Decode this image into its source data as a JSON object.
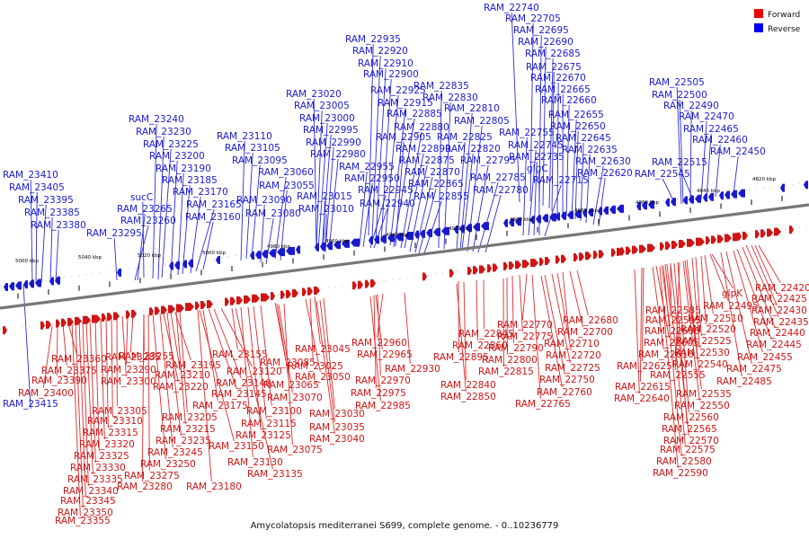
{
  "caption": "Amycolatopsis mediterranei S699, complete genome. - 0..10236779",
  "legend": [
    {
      "label": "Forward",
      "color": "#ee0000"
    },
    {
      "label": "Reverse",
      "color": "#0000ee"
    }
  ],
  "ticks": [
    "5000 kbp",
    "5040 kbp",
    "5020 kbp",
    "5000 kbp",
    "4980 kbp",
    "4960 kbp",
    "4940 kbp",
    "4920 kbp",
    "4900 kbp",
    "4880 kbp",
    "4860 kbp",
    "4840 kbp",
    "4820 kbp"
  ],
  "reverse_labels": [
    "RAM_22740",
    "RAM_22705",
    "RAM_22695",
    "RAM_22690",
    "RAM_22685",
    "RAM_22675",
    "RAM_22670",
    "RAM_22665",
    "RAM_22660",
    "RAM_22655",
    "RAM_22650",
    "RAM_22645",
    "RAM_22635",
    "RAM_22630",
    "RAM_22620",
    "RAM_22935",
    "RAM_22920",
    "RAM_22910",
    "RAM_22900",
    "RAM_22925",
    "RAM_22915",
    "RAM_22885",
    "RAM_22880",
    "RAM_22905",
    "RAM_22890",
    "RAM_22875",
    "RAM_22870",
    "RAM_22865",
    "RAM_22855",
    "RAM_22835",
    "RAM_22830",
    "RAM_22810",
    "RAM_22805",
    "RAM_22825",
    "RAM_22820",
    "RAM_22795",
    "RAM_22785",
    "RAM_22780",
    "RAM_22755",
    "RAM_22745",
    "RAM_22735",
    "glgC",
    "RAM_22715",
    "RAM_23020",
    "RAM_23005",
    "RAM_23000",
    "RAM_22995",
    "RAM_22990",
    "RAM_22980",
    "RAM_22955",
    "RAM_22950",
    "RAM_22945",
    "RAM_22940",
    "RAM_23110",
    "RAM_23105",
    "RAM_23095",
    "RAM_23060",
    "RAM_23055",
    "RAM_23090",
    "RAM_23080",
    "RAM_23015",
    "RAM_23010",
    "RAM_23240",
    "RAM_23230",
    "RAM_23225",
    "RAM_23200",
    "RAM_23190",
    "RAM_23185",
    "RAM_23170",
    "RAM_23165",
    "RAM_23160",
    "sucC",
    "RAM_23265",
    "RAM_23260",
    "RAM_23295",
    "RAM_23410",
    "RAM_23405",
    "RAM_23395",
    "RAM_23385",
    "RAM_23380",
    "RAM_22505",
    "RAM_22500",
    "RAM_22490",
    "RAM_22470",
    "RAM_22465",
    "RAM_22460",
    "RAM_22450",
    "RAM_22515",
    "RAM_22545",
    "RAM_23415"
  ],
  "forward_labels": [
    "RAM_22420",
    "RAM_22425",
    "RAM_22430",
    "RAM_22435",
    "RAM_22440",
    "RAM_22445",
    "RAM_22455",
    "RAM_22475",
    "RAM_22485",
    "glpK",
    "RAM_22495",
    "RAM_22510",
    "RAM_22520",
    "RAM_22525",
    "RAM_22530",
    "RAM_22540",
    "RAM_22535",
    "RAM_22550",
    "RAM_22560",
    "RAM_22565",
    "RAM_22570",
    "RAM_22575",
    "RAM_22580",
    "RAM_22590",
    "RAM_22555",
    "RAM_22585",
    "RAM_22595",
    "RAM_22600",
    "RAM_22605",
    "RAM_22610",
    "RAM_22625",
    "RAM_22615",
    "RAM_22640",
    "RAM_22680",
    "RAM_22700",
    "RAM_22710",
    "RAM_22720",
    "RAM_22725",
    "RAM_22750",
    "RAM_22760",
    "RAM_22765",
    "RAM_22770",
    "RAM_22775",
    "RAM_22790",
    "RAM_22800",
    "RAM_22815",
    "RAM_22845",
    "RAM_22860",
    "RAM_22895",
    "RAM_22840",
    "RAM_22850",
    "RAM_22960",
    "RAM_22965",
    "RAM_22930",
    "RAM_22970",
    "RAM_22975",
    "RAM_22985",
    "RAM_23045",
    "RAM_23025",
    "RAM_23050",
    "RAM_23030",
    "RAM_23035",
    "RAM_23040",
    "RAM_23085",
    "RAM_23065",
    "RAM_23070",
    "RAM_23075",
    "RAM_23100",
    "RAM_23115",
    "RAM_23125",
    "RAM_23130",
    "RAM_23135",
    "RAM_23155",
    "RAM_23120",
    "RAM_23140",
    "RAM_23145",
    "RAM_23175",
    "RAM_23150",
    "RAM_23180",
    "RAM_23195",
    "RAM_23210",
    "RAM_23220",
    "RAM_23205",
    "RAM_23215",
    "RAM_23235",
    "RAM_23245",
    "RAM_23250",
    "RAM_23255",
    "RAM_23275",
    "RAM_23280",
    "RAM_23285",
    "RAM_23290",
    "RAM_23300",
    "RAM_23305",
    "RAM_23310",
    "RAM_23315",
    "RAM_23320",
    "RAM_23325",
    "RAM_23330",
    "RAM_23335",
    "RAM_23340",
    "RAM_23345",
    "RAM_23350",
    "RAM_23355",
    "RAM_23360",
    "RAM_23375",
    "RAM_23390",
    "RAM_23400"
  ]
}
